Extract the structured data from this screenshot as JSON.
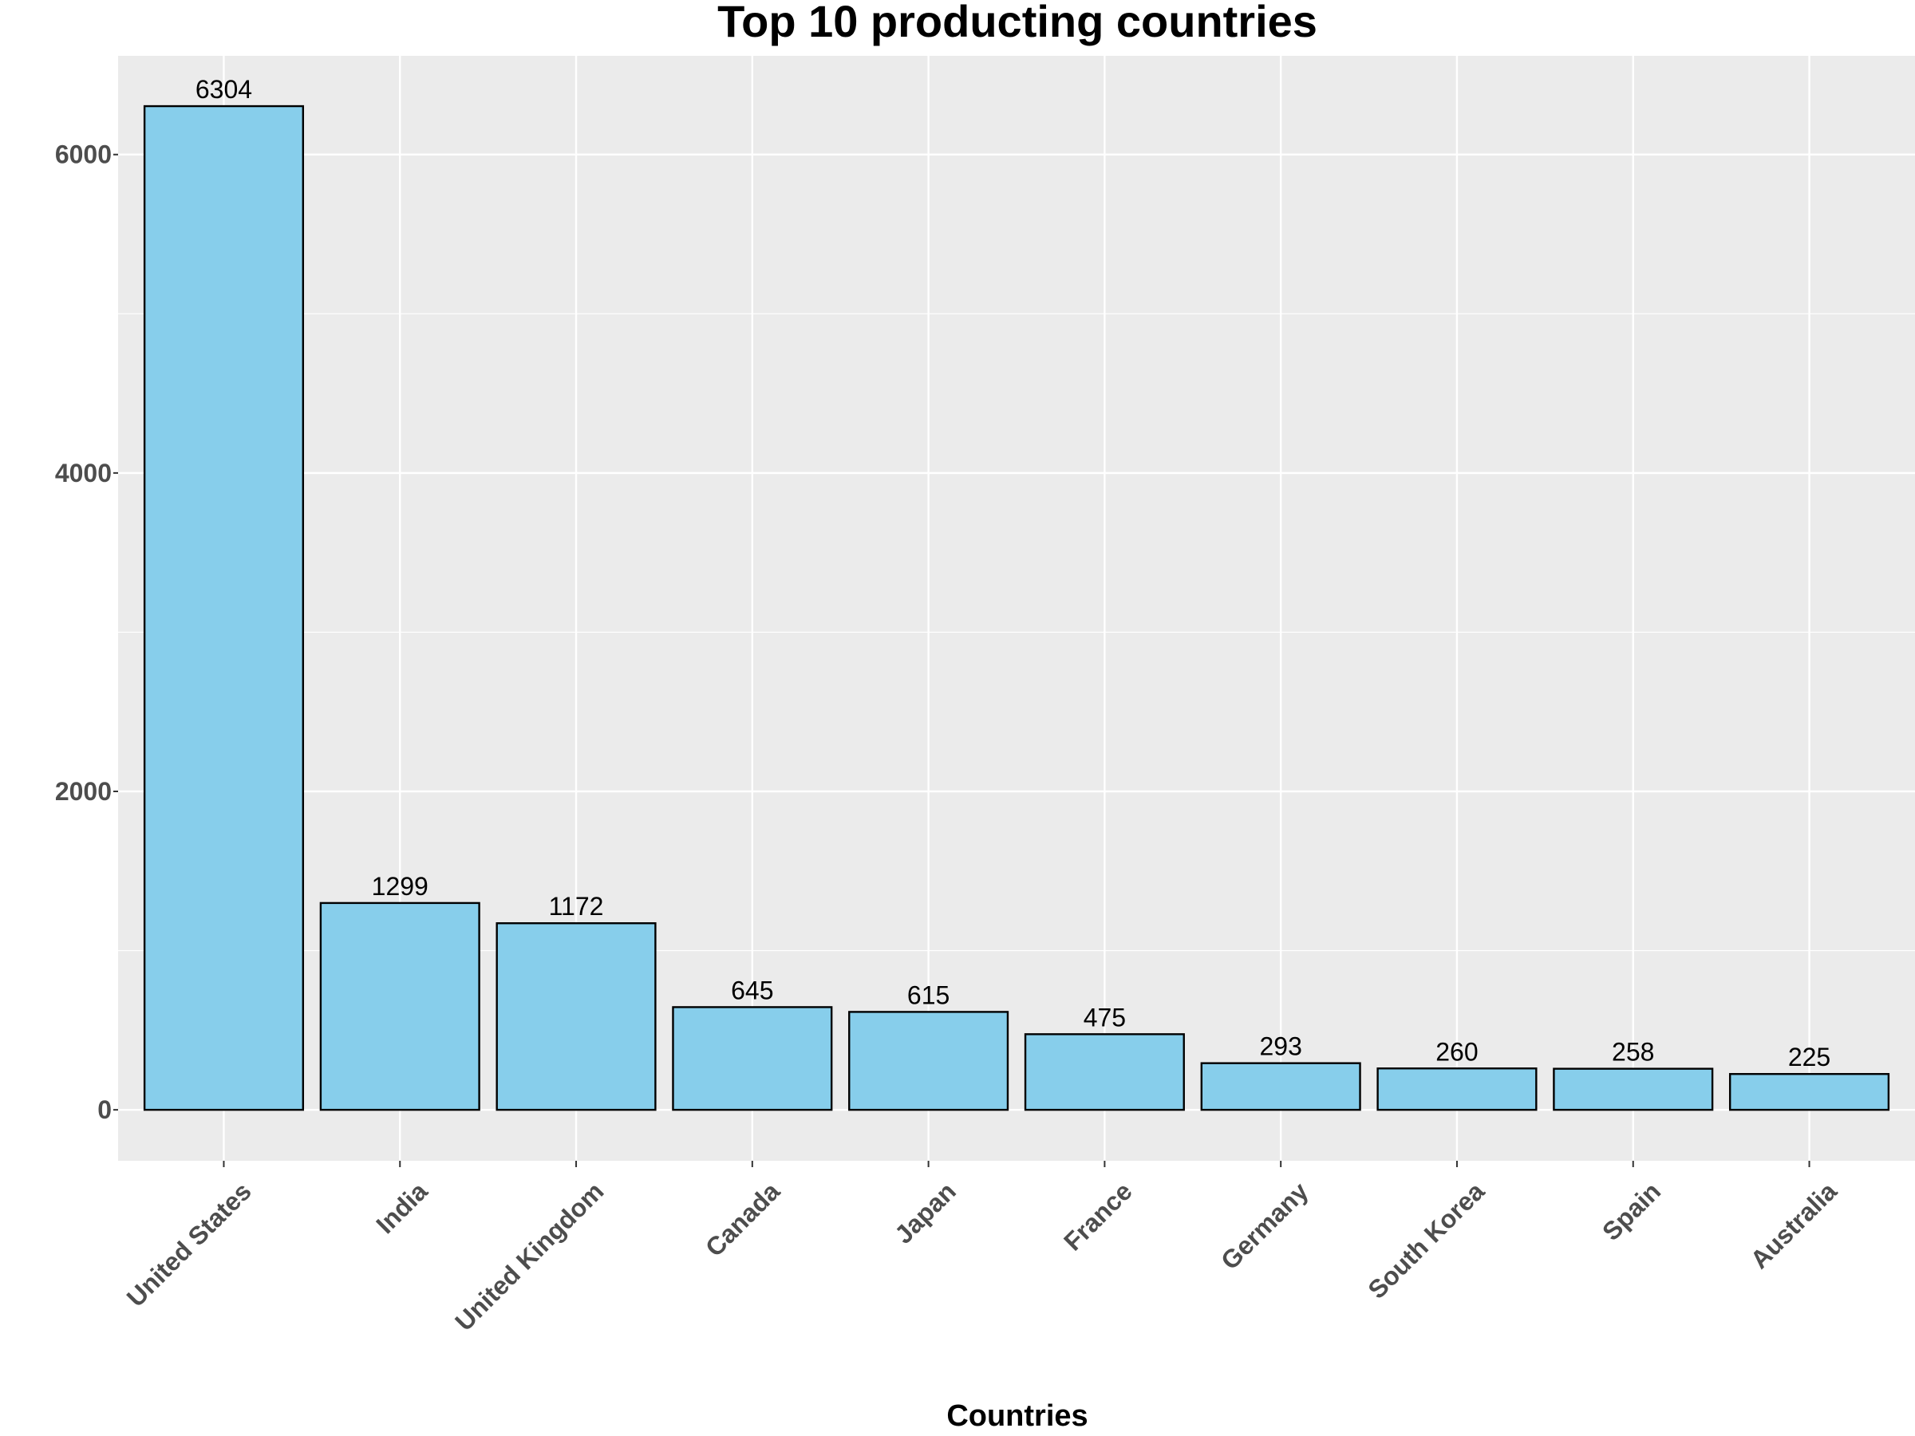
{
  "chart_data": {
    "type": "bar",
    "title": "Top 10 producting countries",
    "xlabel": "Countries",
    "ylabel": "",
    "categories": [
      "United States",
      "India",
      "United Kingdom",
      "Canada",
      "Japan",
      "France",
      "Germany",
      "South Korea",
      "Spain",
      "Australia"
    ],
    "values": [
      6304,
      1299,
      1172,
      645,
      615,
      475,
      293,
      260,
      258,
      225
    ],
    "data_labels": [
      "6304",
      "1299",
      "1172",
      "645",
      "615",
      "475",
      "293",
      "260",
      "258",
      "225"
    ],
    "ylim": [
      -320,
      6620
    ],
    "yticks": [
      0,
      2000,
      4000,
      6000
    ],
    "ytick_labels": [
      "0",
      "2000",
      "4000",
      "6000"
    ],
    "minor_yticks": [
      1000,
      3000,
      5000
    ],
    "grid": true,
    "colors": {
      "bar_fill": "#87CEEB",
      "bar_stroke": "#000000",
      "panel_background": "#EBEBEB",
      "grid_line": "#FFFFFF"
    }
  }
}
